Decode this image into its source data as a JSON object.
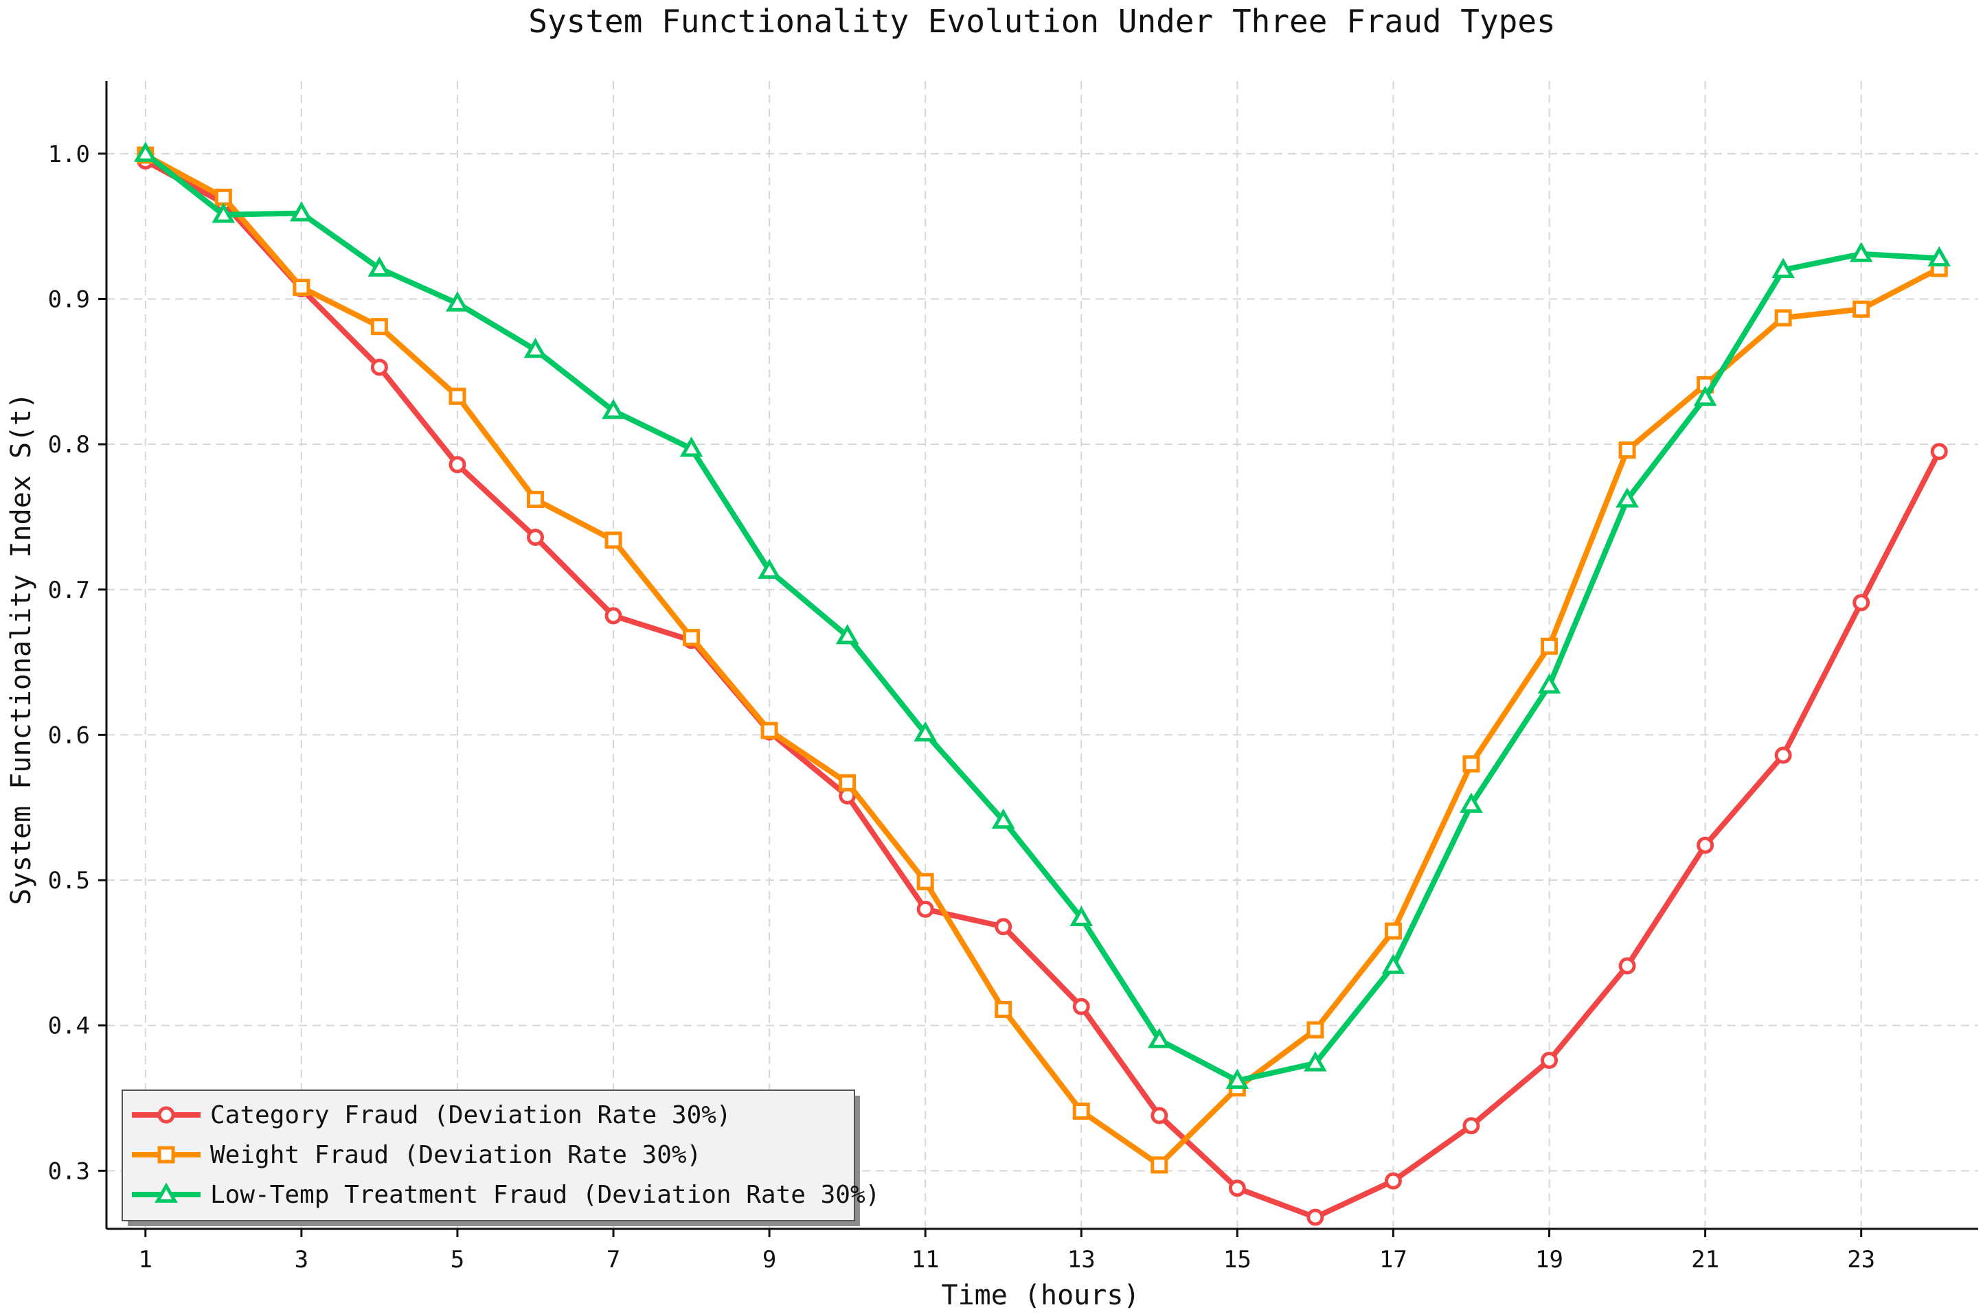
{
  "chart_data": {
    "type": "line",
    "title": "System Functionality Evolution Under Three Fraud Types",
    "xlabel": "Time (hours)",
    "ylabel": "System Functionality Index S(t)",
    "xlim": [
      0.5,
      24.5
    ],
    "ylim": [
      0.26,
      1.05
    ],
    "xticks": [
      "1",
      "3",
      "5",
      "7",
      "9",
      "11",
      "13",
      "15",
      "17",
      "19",
      "21",
      "23"
    ],
    "yticks": [
      "1.0",
      "0.9",
      "0.8",
      "0.7",
      "0.6",
      "0.5",
      "0.4",
      "0.3"
    ],
    "grid": true,
    "legend_position": "lower-left",
    "x": [
      1,
      2,
      3,
      4,
      5,
      6,
      7,
      8,
      9,
      10,
      11,
      12,
      13,
      14,
      15,
      16,
      17,
      18,
      19,
      20,
      21,
      22,
      23,
      24
    ],
    "series": [
      {
        "name": "Category Fraud (Deviation Rate 30%)",
        "color": "#f24545",
        "marker": "circle",
        "values": [
          0.995,
          0.966,
          0.907,
          0.853,
          0.786,
          0.736,
          0.682,
          0.665,
          0.602,
          0.558,
          0.48,
          0.468,
          0.413,
          0.338,
          0.288,
          0.268,
          0.293,
          0.331,
          0.376,
          0.441,
          0.524,
          0.586,
          0.691,
          0.795
        ]
      },
      {
        "name": "Weight Fraud (Deviation Rate 30%)",
        "color": "#ff8c00",
        "marker": "square",
        "values": [
          0.999,
          0.97,
          0.908,
          0.881,
          0.833,
          0.762,
          0.734,
          0.667,
          0.603,
          0.567,
          0.499,
          0.411,
          0.341,
          0.304,
          0.357,
          0.397,
          0.465,
          0.58,
          0.661,
          0.796,
          0.841,
          0.887,
          0.893,
          0.921
        ]
      },
      {
        "name": "Low-Temp Treatment Fraud (Deviation Rate 30%)",
        "color": "#00c864",
        "marker": "triangle",
        "values": [
          1.0,
          0.958,
          0.959,
          0.921,
          0.897,
          0.865,
          0.823,
          0.797,
          0.713,
          0.668,
          0.601,
          0.541,
          0.474,
          0.39,
          0.362,
          0.374,
          0.441,
          0.552,
          0.634,
          0.762,
          0.832,
          0.92,
          0.931,
          0.928
        ]
      }
    ]
  }
}
